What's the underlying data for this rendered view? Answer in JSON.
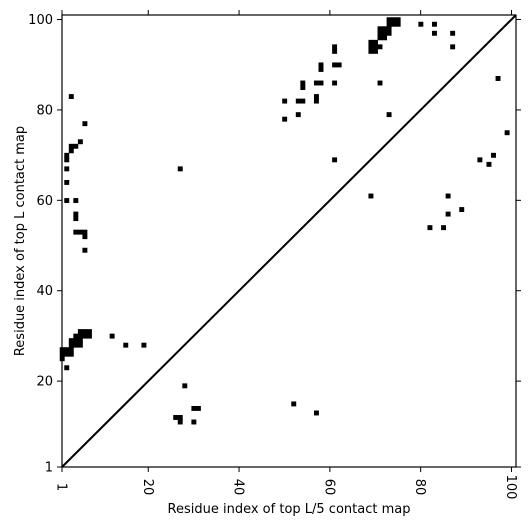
{
  "chart_data": {
    "type": "heatmap",
    "title": "",
    "xlabel": "Residue index of top L/5 contact map",
    "ylabel": "Residue index of top L contact map",
    "xlim": [
      1,
      101
    ],
    "ylim": [
      1,
      101
    ],
    "x_ticks": [
      1,
      20,
      40,
      60,
      80,
      100
    ],
    "y_ticks": [
      1,
      20,
      40,
      60,
      80,
      100
    ],
    "x_tick_labels": [
      "1",
      "20",
      "40",
      "60",
      "80",
      "100"
    ],
    "y_tick_labels": [
      "1",
      "20",
      "40",
      "60",
      "80",
      "100"
    ],
    "x_tick_rotation": "vertical",
    "diagonal_line": true,
    "grid": false,
    "cell_color": "#000000",
    "upper_triangle_contacts": [
      [
        3,
        83
      ],
      [
        6,
        77
      ],
      [
        5,
        73
      ],
      [
        3,
        72
      ],
      [
        4,
        72
      ],
      [
        3,
        71
      ],
      [
        2,
        70
      ],
      [
        2,
        69
      ],
      [
        2,
        67
      ],
      [
        2,
        64
      ],
      [
        2,
        60
      ],
      [
        4,
        60
      ],
      [
        4,
        57
      ],
      [
        4,
        56
      ],
      [
        4,
        53
      ],
      [
        5,
        53
      ],
      [
        6,
        53
      ],
      [
        6,
        52
      ],
      [
        6,
        49
      ],
      [
        27,
        67
      ],
      [
        50,
        82
      ],
      [
        53,
        82
      ],
      [
        54,
        82
      ],
      [
        54,
        86
      ],
      [
        54,
        85
      ],
      [
        53,
        79
      ],
      [
        50,
        78
      ],
      [
        57,
        86
      ],
      [
        58,
        86
      ],
      [
        57,
        83
      ],
      [
        57,
        82
      ],
      [
        58,
        90
      ],
      [
        58,
        89
      ],
      [
        61,
        94
      ],
      [
        61,
        93
      ],
      [
        61,
        90
      ],
      [
        62,
        90
      ],
      [
        61,
        86
      ],
      [
        61,
        69
      ],
      [
        69,
        95
      ],
      [
        70,
        95
      ],
      [
        69,
        94
      ],
      [
        70,
        94
      ],
      [
        71,
        94
      ],
      [
        69,
        93
      ],
      [
        70,
        93
      ],
      [
        71,
        98
      ],
      [
        72,
        98
      ],
      [
        73,
        98
      ],
      [
        71,
        97
      ],
      [
        72,
        97
      ],
      [
        73,
        97
      ],
      [
        71,
        96
      ],
      [
        72,
        96
      ],
      [
        71,
        86
      ],
      [
        73,
        100
      ],
      [
        74,
        100
      ],
      [
        75,
        100
      ],
      [
        73,
        99
      ],
      [
        74,
        99
      ],
      [
        75,
        99
      ],
      [
        73,
        79
      ],
      [
        69,
        61
      ],
      [
        80,
        99
      ],
      [
        83,
        99
      ],
      [
        83,
        97
      ],
      [
        87,
        97
      ],
      [
        87,
        94
      ],
      [
        97,
        87
      ],
      [
        99,
        75
      ],
      [
        93,
        69
      ],
      [
        95,
        68
      ],
      [
        96,
        70
      ],
      [
        86,
        61
      ],
      [
        86,
        57
      ],
      [
        89,
        58
      ],
      [
        82,
        54
      ],
      [
        85,
        54
      ]
    ],
    "lower_triangle_contacts": [
      [
        1,
        27
      ],
      [
        2,
        27
      ],
      [
        3,
        27
      ],
      [
        1,
        26
      ],
      [
        2,
        26
      ],
      [
        3,
        26
      ],
      [
        1,
        25
      ],
      [
        2,
        23
      ],
      [
        3,
        29
      ],
      [
        4,
        29
      ],
      [
        5,
        29
      ],
      [
        3,
        28
      ],
      [
        4,
        28
      ],
      [
        5,
        28
      ],
      [
        5,
        31
      ],
      [
        6,
        31
      ],
      [
        7,
        31
      ],
      [
        5,
        30
      ],
      [
        6,
        30
      ],
      [
        7,
        30
      ],
      [
        4,
        30
      ],
      [
        12,
        30
      ],
      [
        15,
        28
      ],
      [
        19,
        28
      ],
      [
        28,
        19
      ],
      [
        30,
        14
      ],
      [
        31,
        14
      ],
      [
        26,
        12
      ],
      [
        27,
        12
      ],
      [
        27,
        11
      ],
      [
        30,
        11
      ],
      [
        52,
        15
      ],
      [
        57,
        13
      ]
    ]
  }
}
